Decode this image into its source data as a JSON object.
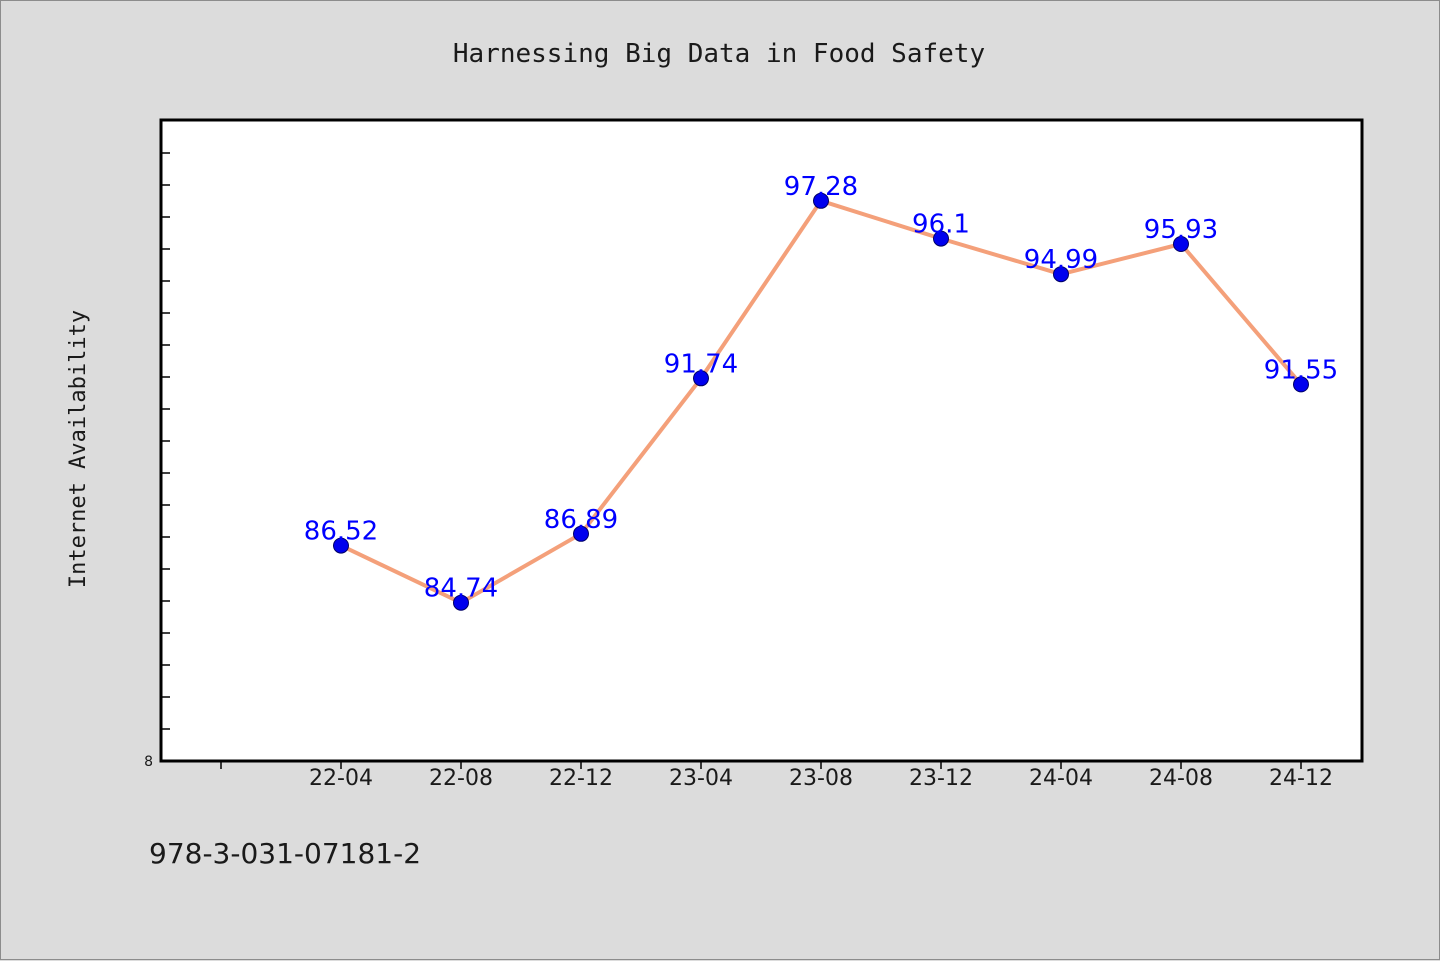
{
  "chart_data": {
    "type": "line",
    "title": "Harnessing Big Data in Food Safety",
    "xlabel": "",
    "ylabel": "Internet Availability",
    "categories": [
      "22-04",
      "22-08",
      "22-12",
      "23-04",
      "23-08",
      "23-12",
      "24-04",
      "24-08",
      "24-12"
    ],
    "values": [
      86.52,
      84.74,
      86.89,
      91.74,
      97.28,
      96.1,
      94.99,
      95.93,
      91.55
    ],
    "data_labels": [
      "86.52",
      "84.74",
      "86.89",
      "91.74",
      "97.28",
      "96.1",
      "94.99",
      "95.93",
      "91.55"
    ],
    "y_tick_labels": [
      "8"
    ],
    "ylim": [
      79.8,
      99.8
    ],
    "grid": false,
    "line_color": "#f4a07a",
    "marker_color": "#0000ee",
    "label_color": "#0000ff",
    "plot_background": "#ffffff",
    "page_background": "#dcdcdc"
  },
  "footer": {
    "text": "978-3-031-07181-2"
  }
}
